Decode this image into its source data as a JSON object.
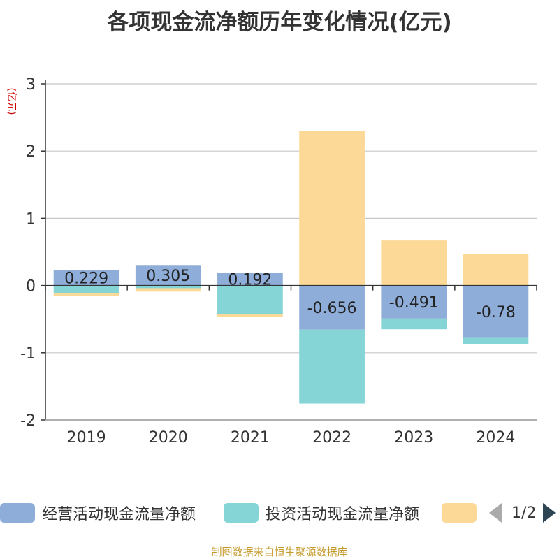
{
  "chart_data": {
    "type": "bar",
    "stacked": true,
    "title": "各项现金流净额历年变化情况(亿元)",
    "unit_label": "(亿元)",
    "categories": [
      "2019",
      "2020",
      "2021",
      "2022",
      "2023",
      "2024"
    ],
    "ylim": [
      -2,
      3
    ],
    "yticks": [
      -2,
      -1,
      0,
      1,
      2,
      3
    ],
    "grid": true,
    "series": [
      {
        "name": "经营活动现金流量净额",
        "color": "#8eadd9",
        "values": [
          0.229,
          0.305,
          0.192,
          -0.656,
          -0.491,
          -0.78
        ],
        "data_labels": [
          "0.229",
          "0.305",
          "0.192",
          "-0.656",
          "-0.491",
          "-0.78"
        ]
      },
      {
        "name": "投资活动现金流量净额",
        "color": "#86d5d6",
        "values": [
          -0.11,
          -0.04,
          -0.42,
          -1.1,
          -0.16,
          -0.09
        ]
      },
      {
        "name": "",
        "color": "#fdd998",
        "values": [
          -0.04,
          -0.05,
          -0.05,
          2.3,
          0.67,
          0.47
        ]
      }
    ],
    "legend": {
      "position": "bottom",
      "page": "1/2"
    }
  },
  "footer": {
    "source": "制图数据来自恒生聚源数据库"
  }
}
